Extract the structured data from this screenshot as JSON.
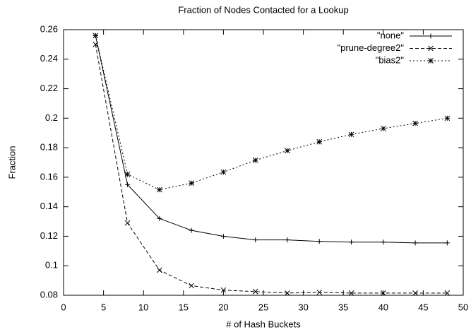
{
  "chart_data": {
    "type": "line",
    "title": "Fraction of Nodes Contacted for a Lookup",
    "xlabel": "# of Hash Buckets",
    "ylabel": "Fraction",
    "x": [
      4,
      8,
      12,
      16,
      20,
      24,
      28,
      32,
      36,
      40,
      44,
      48
    ],
    "series": [
      {
        "name": "\"none\"",
        "color": "#000000",
        "dash": "solid",
        "marker": "plus",
        "values": [
          0.256,
          0.155,
          0.132,
          0.124,
          0.12,
          0.1175,
          0.1175,
          0.1165,
          0.116,
          0.116,
          0.1155,
          0.1155
        ]
      },
      {
        "name": "\"prune-degree2\"",
        "color": "#000000",
        "dash": "dashed",
        "marker": "cross",
        "values": [
          0.25,
          0.129,
          0.097,
          0.0865,
          0.0835,
          0.0825,
          0.0815,
          0.082,
          0.0815,
          0.0815,
          0.0815,
          0.0815
        ]
      },
      {
        "name": "\"bias2\"",
        "color": "#000000",
        "dash": "dotted",
        "marker": "star",
        "values": [
          0.256,
          0.162,
          0.1515,
          0.156,
          0.1635,
          0.1715,
          0.178,
          0.184,
          0.189,
          0.193,
          0.1965,
          0.2
        ]
      }
    ],
    "xlim": [
      0,
      50
    ],
    "xticks": [
      0,
      5,
      10,
      15,
      20,
      25,
      30,
      35,
      40,
      45,
      50
    ],
    "ylim": [
      0.08,
      0.26
    ],
    "yticks": [
      0.08,
      0.1,
      0.12,
      0.14,
      0.16,
      0.18,
      0.2,
      0.22,
      0.24,
      0.26
    ],
    "legend": "top-right"
  }
}
